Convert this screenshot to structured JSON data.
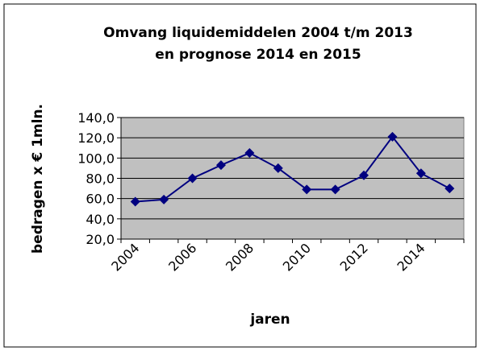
{
  "chart_data": {
    "type": "line",
    "title": [
      "Omvang liquidemiddelen 2004 t/m 2013",
      "en prognose 2014 en 2015"
    ],
    "x_label": "jaren",
    "y_label": "bedragen x € 1mln.",
    "categories": [
      "2004",
      null,
      "2006",
      null,
      "2008",
      null,
      "2010",
      null,
      "2012",
      null,
      "2014",
      null
    ],
    "series": [
      {
        "name": "liquidemiddelen",
        "color": "#000080",
        "values": [
          57,
          59,
          80,
          93,
          105,
          90,
          69,
          69,
          83,
          121,
          85,
          70
        ]
      }
    ],
    "ylim": [
      20,
      140
    ],
    "yticks": [
      {
        "value": 20,
        "label": "20,0"
      },
      {
        "value": 40,
        "label": "40,0"
      },
      {
        "value": 60,
        "label": "60,0"
      },
      {
        "value": 80,
        "label": "80,0"
      },
      {
        "value": 100,
        "label": "100,0"
      },
      {
        "value": 120,
        "label": "120,0"
      },
      {
        "value": 140,
        "label": "140,0"
      }
    ],
    "grid": true,
    "plot_background": "#c0c0c0"
  }
}
